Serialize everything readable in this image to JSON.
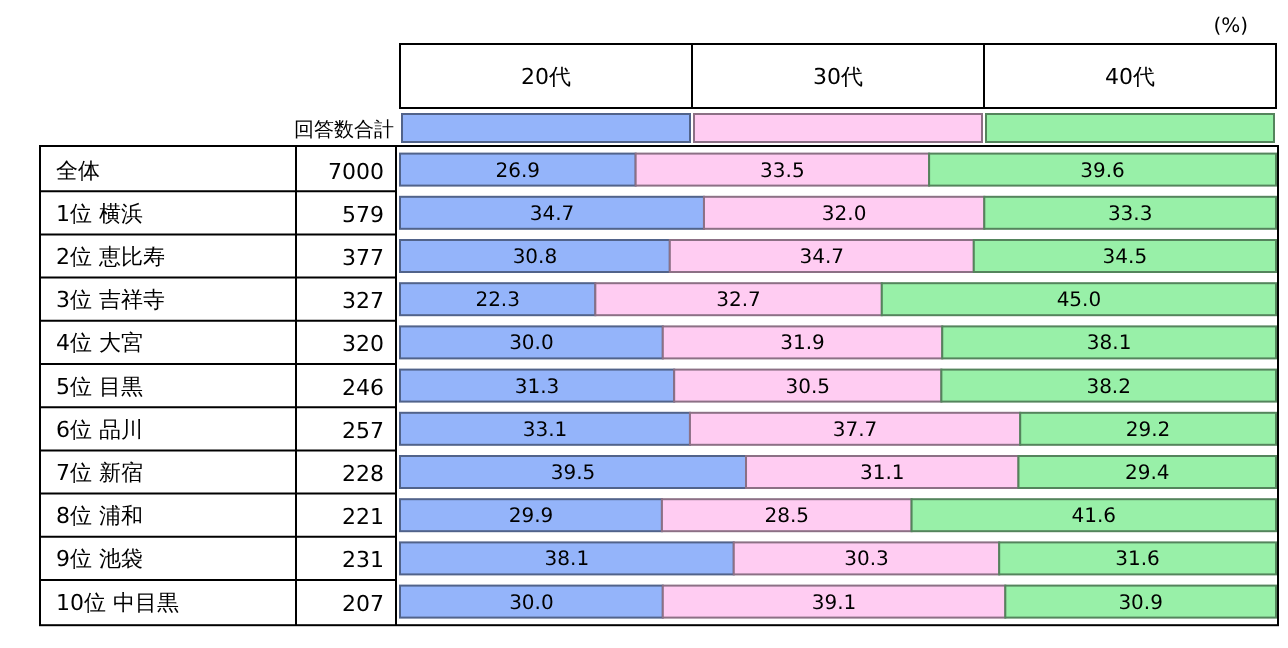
{
  "chart_data": {
    "type": "bar",
    "orientation": "horizontal",
    "stacked": true,
    "legend": "top",
    "xlim": [
      0,
      100
    ],
    "categories": [
      "全体",
      "1位 横浜",
      "2位 恵比寿",
      "3位 吉祥寺",
      "4位 大宮",
      "5位 目黒",
      "6位 品川",
      "7位 新宿",
      "8位 浦和",
      "9位 池袋",
      "10位 中目黒"
    ],
    "series": [
      {
        "name": "20代",
        "color": "#94b4fa",
        "values": [
          26.9,
          34.7,
          30.8,
          22.3,
          30.0,
          31.3,
          33.1,
          39.5,
          29.9,
          38.1,
          30.0
        ],
        "value_labels": [
          "26.9",
          "34.7",
          "30.8",
          "22.3",
          "30.0",
          "31.3",
          "33.1",
          "39.5",
          "29.9",
          "38.1",
          "30.0"
        ]
      },
      {
        "name": "30代",
        "color": "#ffccf2",
        "values": [
          33.5,
          32.0,
          34.7,
          32.7,
          31.9,
          30.5,
          37.7,
          31.1,
          28.5,
          30.3,
          39.1
        ],
        "value_labels": [
          "33.5",
          "32.0",
          "34.7",
          "32.7",
          "31.9",
          "30.5",
          "37.7",
          "31.1",
          "28.5",
          "30.3",
          "39.1"
        ]
      },
      {
        "name": "40代",
        "color": "#98f0a8",
        "values": [
          39.6,
          33.3,
          34.5,
          45.0,
          38.1,
          38.2,
          29.2,
          29.4,
          41.6,
          31.6,
          30.9
        ],
        "value_labels": [
          "39.6",
          "33.3",
          "34.5",
          "45.0",
          "38.1",
          "38.2",
          "29.2",
          "29.4",
          "41.6",
          "31.6",
          "30.9"
        ]
      }
    ],
    "annotations": [
      "(%)",
      "回答数合計",
      "7000",
      "579",
      "377",
      "327",
      "320",
      "246",
      "257",
      "228",
      "221",
      "231",
      "207"
    ]
  }
}
